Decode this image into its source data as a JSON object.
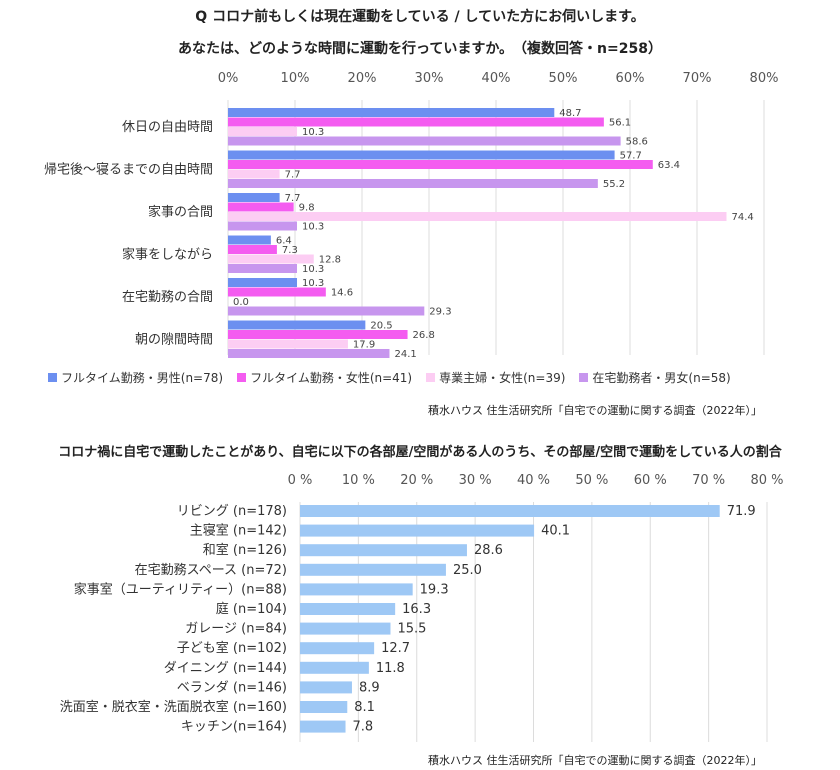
{
  "chart_data": [
    {
      "type": "bar",
      "orientation": "horizontal",
      "title": "Q コロナ前もしくは現在運動をしている / していた方にお伺いします。",
      "subtitle": "あなたは、どのような時間に運動を行っていますか。　（複数回答・n=258）",
      "categories": [
        "休日の自由時間",
        "帰宅後～寝るまでの自由時間",
        "家事の合間",
        "家事をしながら",
        "在宅勤務の合間",
        "朝の隙間時間"
      ],
      "series": [
        {
          "name": "フルタイム勤務・男性(n=78)",
          "color": "#6c8ff0",
          "values": [
            48.7,
            57.7,
            7.7,
            6.4,
            10.3,
            20.5
          ]
        },
        {
          "name": "フルタイム勤務・女性(n=41)",
          "color": "#f45cf0",
          "values": [
            56.1,
            63.4,
            9.8,
            7.3,
            14.6,
            26.8
          ]
        },
        {
          "name": "専業主婦・女性(n=39)",
          "color": "#fccdf3",
          "values": [
            10.3,
            7.7,
            74.4,
            12.8,
            0.0,
            17.9
          ]
        },
        {
          "name": "在宅勤務者・男女(n=58)",
          "color": "#c796ee",
          "values": [
            58.6,
            55.2,
            10.3,
            10.3,
            29.3,
            24.1
          ]
        }
      ],
      "xlim": [
        0,
        80
      ],
      "ticks": [
        "0%",
        "10%",
        "20%",
        "30%",
        "40%",
        "50%",
        "60%",
        "70%",
        "80%"
      ],
      "grid": true,
      "legend_position": "bottom",
      "source": "積水ハウス 住生活研究所「自宅での運動に関する調査（2022年）」"
    },
    {
      "type": "bar",
      "orientation": "horizontal",
      "title": "コロナ禍に自宅で運動したことがあり、自宅に以下の各部屋/空間がある人のうち、その部屋/空間で運動をしている人の割合",
      "categories": [
        "リビング (n=178)",
        "主寝室 (n=142)",
        "和室 (n=126)",
        "在宅勤務スペース (n=72)",
        "家事室（ユーティリティー）(n=88)",
        "庭 (n=104)",
        "ガレージ (n=84)",
        "子ども室 (n=102)",
        "ダイニング (n=144)",
        "ベランダ (n=146)",
        "洗面室・脱衣室・洗面脱衣室 (n=160)",
        "キッチン(n=164)"
      ],
      "values": [
        71.9,
        40.1,
        28.6,
        25.0,
        19.3,
        16.3,
        15.5,
        12.7,
        11.8,
        8.9,
        8.1,
        7.8
      ],
      "value_labels": [
        "71.9",
        "40.1",
        "28.6",
        "25.0",
        "19.3",
        "16.3",
        "15.5",
        "12.7",
        "11.8",
        "8.9",
        "8.1",
        "7.8"
      ],
      "color": "#9ec8f5",
      "xlim": [
        0,
        80
      ],
      "ticks": [
        "0 %",
        "10 %",
        "20 %",
        "30 %",
        "40 %",
        "50 %",
        "60 %",
        "70 %",
        "80 %"
      ],
      "grid": true,
      "source": "積水ハウス 住生活研究所「自宅での運動に関する調査（2022年）」"
    }
  ]
}
